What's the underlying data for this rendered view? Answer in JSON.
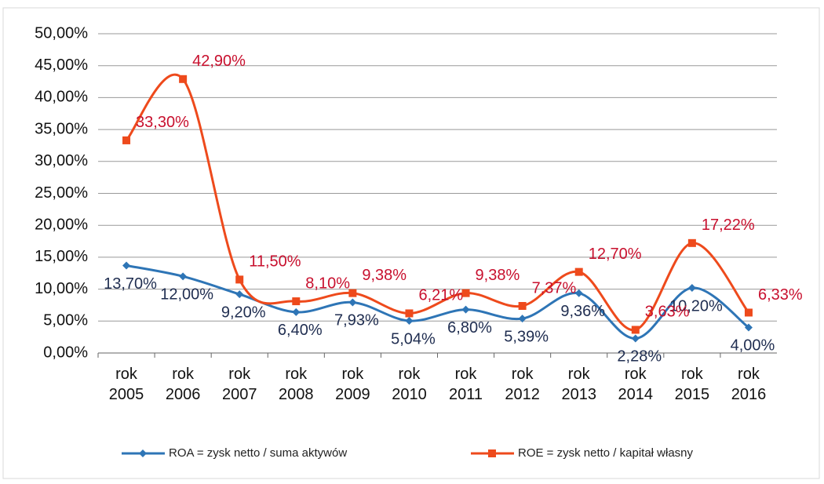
{
  "chart_data": {
    "type": "line",
    "categories": [
      "rok 2005",
      "rok 2006",
      "rok 2007",
      "rok 2008",
      "rok 2009",
      "rok 2010",
      "rok 2011",
      "rok 2012",
      "rok 2013",
      "rok 2014",
      "rok 2015",
      "rok 2016"
    ],
    "series": [
      {
        "name": "ROA = zysk netto / suma aktywów",
        "color": "#2e75b6",
        "label_color": "#1f2d50",
        "values": [
          13.7,
          12.0,
          9.2,
          6.4,
          7.93,
          5.04,
          6.8,
          5.39,
          9.36,
          2.28,
          10.2,
          4.0
        ],
        "value_labels": [
          "13,70%",
          "12,00%",
          "9,20%",
          "6,40%",
          "7,93%",
          "5,04%",
          "6,80%",
          "5,39%",
          "9,36%",
          "2,28%",
          "10,20%",
          "4,00%"
        ]
      },
      {
        "name": "ROE = zysk netto / kapitał własny",
        "color": "#ee4a1c",
        "label_color": "#c8102e",
        "values": [
          33.3,
          42.9,
          11.5,
          8.1,
          9.38,
          6.21,
          9.38,
          7.37,
          12.7,
          3.63,
          17.22,
          6.33
        ],
        "value_labels": [
          "33,30%",
          "42,90%",
          "11,50%",
          "8,10%",
          "9,38%",
          "6,21%",
          "9,38%",
          "7,37%",
          "12,70%",
          "3,63%",
          "17,22%",
          "6,33%"
        ]
      }
    ],
    "ylim": [
      0,
      50
    ],
    "yticks": [
      {
        "value": 0,
        "label": "0,00%"
      },
      {
        "value": 5,
        "label": "5,00%"
      },
      {
        "value": 10,
        "label": "10,00%"
      },
      {
        "value": 15,
        "label": "15,00%"
      },
      {
        "value": 20,
        "label": "20,00%"
      },
      {
        "value": 25,
        "label": "25,00%"
      },
      {
        "value": 30,
        "label": "30,00%"
      },
      {
        "value": 35,
        "label": "35,00%"
      },
      {
        "value": 40,
        "label": "40,00%"
      },
      {
        "value": 45,
        "label": "45,00%"
      },
      {
        "value": 50,
        "label": "50,00%"
      }
    ],
    "grid": true,
    "legend": "bottom"
  }
}
